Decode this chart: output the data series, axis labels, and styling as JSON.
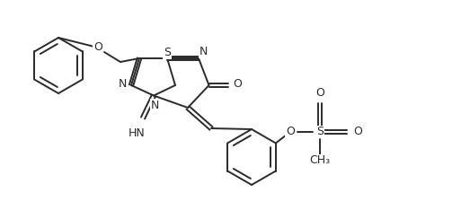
{
  "bg_color": "#ffffff",
  "line_color": "#2a2a2a",
  "line_width": 1.4,
  "font_size": 9.0,
  "figsize": [
    5.23,
    2.34
  ],
  "dpi": 100,
  "xlim": [
    0,
    10.46
  ],
  "ylim": [
    0,
    4.68
  ]
}
